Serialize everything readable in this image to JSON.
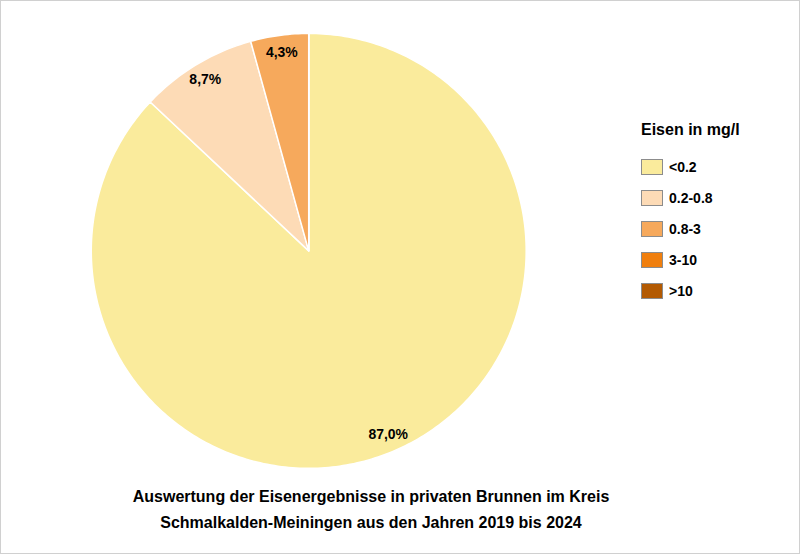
{
  "chart_data": {
    "type": "pie",
    "title": "Auswertung der Eisenergebnisse in privaten Brunnen im Kreis\nSchmalkalden-Meiningen  aus den Jahren 2019 bis 2024",
    "legend_title": "Eisen in mg/l",
    "categories": [
      "<0.2",
      "0.2-0.8",
      "0.8-3",
      "3-10",
      ">10"
    ],
    "values": [
      87.0,
      8.7,
      4.3,
      0,
      0
    ],
    "value_labels": [
      "87,0%",
      "8,7%",
      "4,3%",
      null,
      null
    ],
    "colors": [
      "#faeb9c",
      "#fddbb6",
      "#f6a95c",
      "#f07f0e",
      "#b35a02"
    ],
    "data_labels": true,
    "legend": "right"
  }
}
